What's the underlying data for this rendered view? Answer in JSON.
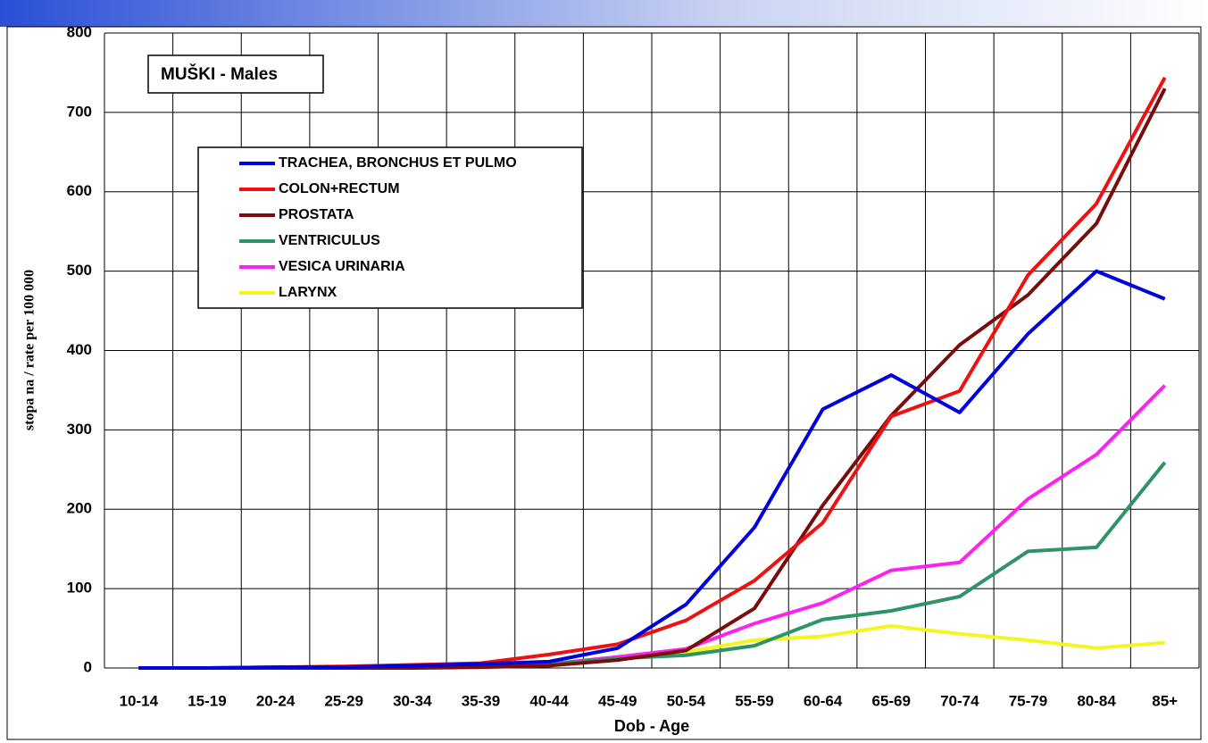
{
  "chart_data": {
    "type": "line",
    "annotation": "MUŠKI - Males",
    "x_label": "Dob - Age",
    "y_label": "stopa na / rate per 100 000",
    "categories": [
      "10-14",
      "15-19",
      "20-24",
      "25-29",
      "30-34",
      "35-39",
      "40-44",
      "45-49",
      "50-54",
      "55-59",
      "60-64",
      "65-69",
      "70-74",
      "75-79",
      "80-84",
      "85+"
    ],
    "series": [
      {
        "name": "TRACHEA, BRONCHUS ET PULMO",
        "color": "#0000dd",
        "values": [
          0,
          0,
          1,
          1,
          3,
          5,
          8,
          25,
          80,
          177,
          326,
          369,
          322,
          421,
          500,
          465
        ]
      },
      {
        "name": "COLON+RECTUM",
        "color": "#ee1111",
        "values": [
          0,
          0,
          1,
          2,
          4,
          6,
          17,
          30,
          60,
          110,
          183,
          317,
          349,
          495,
          585,
          744
        ]
      },
      {
        "name": "PROSTATA",
        "color": "#7a0c0c",
        "values": [
          0,
          0,
          0,
          0,
          0,
          1,
          3,
          10,
          22,
          75,
          205,
          318,
          407,
          470,
          560,
          730
        ]
      },
      {
        "name": "VENTRICULUS",
        "color": "#2e9466",
        "values": [
          0,
          0,
          0,
          1,
          2,
          3,
          5,
          12,
          16,
          28,
          61,
          72,
          90,
          147,
          152,
          259
        ]
      },
      {
        "name": "VESICA URINARIA",
        "color": "#ff22ee",
        "values": [
          0,
          0,
          0,
          0,
          1,
          3,
          5,
          14,
          24,
          56,
          82,
          123,
          133,
          213,
          269,
          356
        ]
      },
      {
        "name": "LARYNX",
        "color": "#f5f522",
        "values": [
          0,
          0,
          0,
          0,
          1,
          2,
          3,
          12,
          20,
          35,
          40,
          53,
          43,
          35,
          25,
          32
        ]
      }
    ],
    "ylim": [
      0,
      800
    ],
    "yticks": [
      0,
      100,
      200,
      300,
      400,
      500,
      600,
      700,
      800
    ],
    "grid": true
  }
}
